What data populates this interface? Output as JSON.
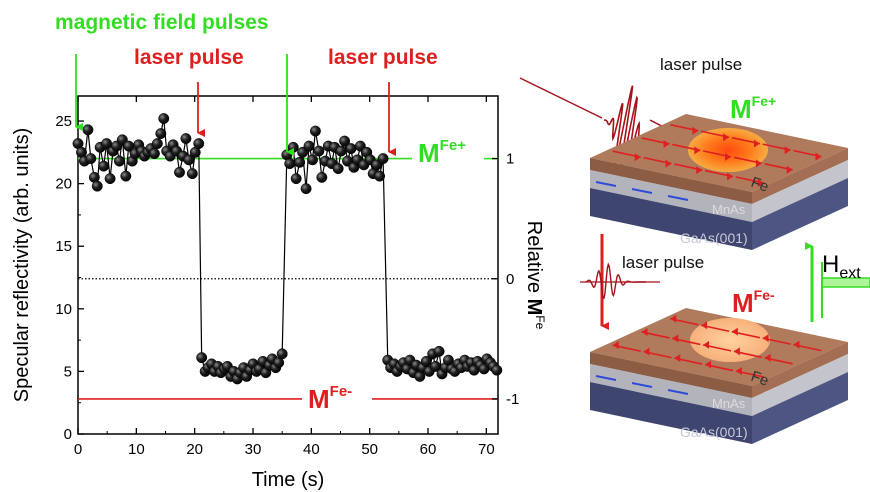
{
  "annotations": {
    "magnetic_field_pulses": "magnetic field pulses",
    "laser_pulse_1": "laser pulse",
    "laser_pulse_2": "laser pulse",
    "m_label": "M",
    "fe_plus_sup": "Fe+",
    "fe_minus_sup": "Fe-",
    "rel_prefix": "Relative ",
    "rel_m": "M",
    "rel_sup": "Fe"
  },
  "colors": {
    "green": "#33dd22",
    "red": "#dd1f1f",
    "points": "#111111"
  },
  "chart_data": {
    "type": "scatter",
    "xlabel": "Time (s)",
    "ylabel": "Specular reflectivity (arb. units)",
    "xlim": [
      0,
      72
    ],
    "ylim": [
      0,
      27
    ],
    "x_ticks": [
      "0",
      "10",
      "20",
      "30",
      "40",
      "50",
      "60",
      "70"
    ],
    "y_ticks": [
      "0",
      "5",
      "10",
      "15",
      "20",
      "25"
    ],
    "right_ticks": [
      "1",
      "0",
      "-1"
    ],
    "reference_lines": {
      "M_Fe_plus": 22,
      "zero": 12.4,
      "M_Fe_minus": 2.8
    },
    "magnetic_field_pulse_times": [
      0,
      36
    ],
    "laser_pulse_times": [
      21,
      53
    ],
    "series": [
      {
        "x": [
          0.0,
          0.6,
          1.1,
          1.7,
          2.2,
          2.8,
          3.3,
          3.8,
          4.4,
          4.9,
          5.5,
          6.0,
          6.6,
          7.1,
          7.6,
          8.2,
          8.7,
          9.3,
          9.8,
          10.4,
          10.9,
          11.4,
          12.0,
          12.5,
          13.1,
          13.6,
          14.2,
          14.7,
          15.2,
          15.8,
          16.3,
          16.9,
          17.4,
          18.0,
          18.5,
          19.0,
          19.6,
          20.1,
          20.7,
          21.2,
          21.8,
          22.3,
          22.9,
          23.4,
          24.0,
          24.5,
          25.1,
          25.6,
          26.2,
          26.7,
          27.3,
          27.8,
          28.4,
          28.9,
          29.5,
          30.0,
          30.6,
          31.1,
          31.7,
          32.2,
          32.8,
          33.3,
          33.9,
          34.4,
          35.0,
          35.8,
          36.3,
          36.9,
          37.4,
          38.0,
          38.5,
          39.1,
          39.6,
          40.2,
          40.7,
          41.3,
          41.8,
          42.4,
          42.9,
          43.5,
          44.0,
          44.6,
          45.1,
          45.7,
          46.2,
          46.8,
          47.3,
          47.9,
          48.4,
          49.0,
          49.5,
          50.1,
          50.6,
          51.2,
          51.7,
          52.3,
          53.1,
          53.6,
          54.2,
          54.7,
          55.3,
          55.8,
          56.4,
          56.9,
          57.5,
          58.0,
          58.6,
          59.1,
          59.7,
          60.2,
          60.8,
          61.3,
          61.9,
          62.4,
          63.0,
          63.5,
          64.1,
          64.6,
          65.2,
          65.7,
          66.3,
          66.8,
          67.4,
          67.9,
          68.5,
          69.0,
          69.6,
          70.1,
          70.7,
          71.2,
          71.8
        ],
        "y": [
          23.2,
          22.5,
          21.8,
          24.3,
          22.0,
          20.5,
          19.8,
          22.9,
          21.4,
          23.2,
          20.4,
          22.6,
          23.0,
          21.8,
          23.5,
          20.6,
          23.0,
          21.8,
          22.4,
          23.1,
          22.6,
          22.2,
          22.5,
          22.8,
          22.4,
          23.2,
          24.0,
          25.2,
          22.6,
          22.2,
          23.1,
          22.6,
          20.9,
          22.2,
          23.6,
          21.9,
          20.8,
          22.5,
          23.2,
          6.1,
          5.0,
          5.3,
          5.6,
          5.0,
          5.4,
          4.9,
          5.2,
          5.4,
          4.6,
          5.0,
          4.4,
          4.9,
          5.3,
          4.6,
          5.1,
          5.6,
          5.0,
          5.2,
          5.8,
          4.9,
          5.5,
          6.0,
          5.3,
          5.7,
          6.4,
          22.3,
          21.6,
          22.9,
          20.4,
          21.7,
          22.5,
          19.6,
          23.0,
          21.9,
          24.2,
          22.6,
          20.5,
          21.8,
          23.0,
          21.6,
          22.9,
          21.2,
          22.6,
          23.4,
          21.8,
          22.8,
          21.3,
          21.9,
          23.0,
          21.5,
          22.5,
          21.9,
          20.8,
          21.5,
          20.6,
          22.0,
          5.9,
          5.3,
          5.6,
          5.0,
          5.4,
          5.7,
          5.2,
          5.9,
          4.9,
          5.5,
          4.6,
          5.3,
          5.8,
          5.0,
          6.4,
          5.4,
          6.6,
          4.8,
          5.3,
          5.9,
          5.2,
          5.0,
          5.6,
          5.3,
          5.9,
          5.4,
          5.7,
          5.1,
          5.8,
          5.5,
          5.2,
          6.0,
          5.7,
          5.4,
          5.1
        ]
      }
    ]
  },
  "diagram": {
    "laser_pulse_top": "laser pulse",
    "laser_pulse_mid": "laser pulse",
    "m_top": "M",
    "m_top_sup": "Fe+",
    "m_bottom": "M",
    "m_bottom_sup": "Fe-",
    "fe_top": "Fe",
    "mnas_top": "MnAs",
    "gaas_top": "GaAs(001)",
    "fe_bottom": "Fe",
    "mnas_bottom": "MnAs",
    "gaas_bottom": "GaAs(001)",
    "h_label": "H",
    "h_sub": "ext"
  }
}
